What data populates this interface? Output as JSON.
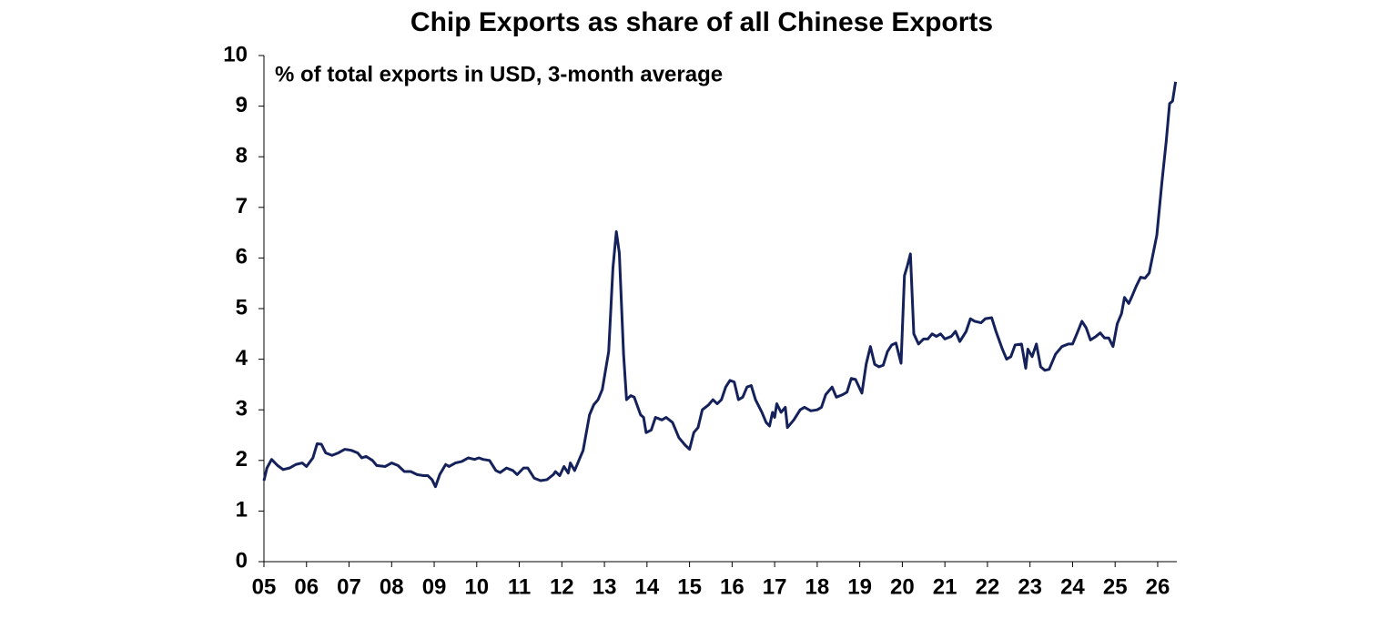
{
  "chart_data": {
    "type": "line",
    "title": "Chip Exports as share of all Chinese Exports",
    "annotation": "% of total exports in USD, 3-month average",
    "color": "#14215a",
    "xlim": [
      2005,
      2026.45
    ],
    "xticks": [
      {
        "value": 2005,
        "label": "05"
      },
      {
        "value": 2006,
        "label": "06"
      },
      {
        "value": 2007,
        "label": "07"
      },
      {
        "value": 2008,
        "label": "08"
      },
      {
        "value": 2009,
        "label": "09"
      },
      {
        "value": 2010,
        "label": "10"
      },
      {
        "value": 2011,
        "label": "11"
      },
      {
        "value": 2012,
        "label": "12"
      },
      {
        "value": 2013,
        "label": "13"
      },
      {
        "value": 2014,
        "label": "14"
      },
      {
        "value": 2015,
        "label": "15"
      },
      {
        "value": 2016,
        "label": "16"
      },
      {
        "value": 2017,
        "label": "17"
      },
      {
        "value": 2018,
        "label": "18"
      },
      {
        "value": 2019,
        "label": "19"
      },
      {
        "value": 2020,
        "label": "20"
      },
      {
        "value": 2021,
        "label": "21"
      },
      {
        "value": 2022,
        "label": "22"
      },
      {
        "value": 2023,
        "label": "23"
      },
      {
        "value": 2024,
        "label": "24"
      },
      {
        "value": 2025,
        "label": "25"
      },
      {
        "value": 2026,
        "label": "26"
      }
    ],
    "ylim": [
      0,
      10
    ],
    "yticks": [
      0,
      1,
      2,
      3,
      4,
      5,
      6,
      7,
      8,
      9,
      10
    ],
    "x": [
      2005.0,
      2005.07,
      2005.18,
      2005.32,
      2005.45,
      2005.6,
      2005.75,
      2005.9,
      2006.0,
      2006.15,
      2006.25,
      2006.35,
      2006.45,
      2006.6,
      2006.75,
      2006.9,
      2007.05,
      2007.2,
      2007.3,
      2007.4,
      2007.55,
      2007.65,
      2007.85,
      2008.0,
      2008.15,
      2008.3,
      2008.45,
      2008.6,
      2008.75,
      2008.85,
      2008.95,
      2009.03,
      2009.13,
      2009.27,
      2009.35,
      2009.5,
      2009.65,
      2009.8,
      2009.95,
      2010.05,
      2010.15,
      2010.3,
      2010.45,
      2010.55,
      2010.7,
      2010.85,
      2010.95,
      2011.1,
      2011.2,
      2011.35,
      2011.5,
      2011.65,
      2011.8,
      2011.85,
      2011.95,
      2012.05,
      2012.15,
      2012.2,
      2012.3,
      2012.5,
      2012.65,
      2012.75,
      2012.85,
      2012.95,
      2013.1,
      2013.2,
      2013.28,
      2013.35,
      2013.45,
      2013.52,
      2013.62,
      2013.7,
      2013.85,
      2013.92,
      2013.98,
      2014.1,
      2014.2,
      2014.35,
      2014.45,
      2014.6,
      2014.75,
      2014.9,
      2015.0,
      2015.1,
      2015.2,
      2015.3,
      2015.45,
      2015.55,
      2015.65,
      2015.75,
      2015.85,
      2015.95,
      2016.05,
      2016.15,
      2016.25,
      2016.35,
      2016.45,
      2016.55,
      2016.7,
      2016.8,
      2016.88,
      2016.95,
      2017.0,
      2017.05,
      2017.15,
      2017.25,
      2017.3,
      2017.45,
      2017.6,
      2017.7,
      2017.85,
      2018.0,
      2018.1,
      2018.2,
      2018.35,
      2018.45,
      2018.6,
      2018.7,
      2018.8,
      2018.9,
      2019.05,
      2019.15,
      2019.25,
      2019.35,
      2019.45,
      2019.55,
      2019.65,
      2019.75,
      2019.85,
      2019.97,
      2020.05,
      2020.12,
      2020.19,
      2020.27,
      2020.38,
      2020.5,
      2020.6,
      2020.7,
      2020.8,
      2020.9,
      2021.0,
      2021.15,
      2021.25,
      2021.35,
      2021.5,
      2021.6,
      2021.7,
      2021.85,
      2021.95,
      2022.1,
      2022.2,
      2022.35,
      2022.45,
      2022.55,
      2022.65,
      2022.8,
      2022.9,
      2022.95,
      2023.05,
      2023.15,
      2023.25,
      2023.35,
      2023.45,
      2023.6,
      2023.75,
      2023.9,
      2024.0,
      2024.1,
      2024.22,
      2024.32,
      2024.42,
      2024.55,
      2024.65,
      2024.75,
      2024.85,
      2024.95,
      2025.05,
      2025.15,
      2025.22,
      2025.32,
      2025.4,
      2025.5,
      2025.6,
      2025.7,
      2025.8,
      2025.98,
      2026.1,
      2026.2,
      2026.28,
      2026.35,
      2026.42
    ],
    "values": [
      1.6,
      1.85,
      2.02,
      1.9,
      1.82,
      1.85,
      1.92,
      1.95,
      1.88,
      2.05,
      2.33,
      2.32,
      2.15,
      2.1,
      2.15,
      2.22,
      2.2,
      2.15,
      2.05,
      2.08,
      2.0,
      1.9,
      1.88,
      1.95,
      1.9,
      1.78,
      1.78,
      1.72,
      1.7,
      1.7,
      1.62,
      1.48,
      1.72,
      1.92,
      1.88,
      1.95,
      1.98,
      2.05,
      2.02,
      2.05,
      2.02,
      2.0,
      1.8,
      1.76,
      1.85,
      1.8,
      1.72,
      1.85,
      1.85,
      1.65,
      1.6,
      1.62,
      1.72,
      1.78,
      1.7,
      1.88,
      1.75,
      1.95,
      1.8,
      2.2,
      2.9,
      3.1,
      3.2,
      3.4,
      4.15,
      5.8,
      6.52,
      6.1,
      4.1,
      3.2,
      3.28,
      3.25,
      2.9,
      2.85,
      2.55,
      2.6,
      2.85,
      2.8,
      2.85,
      2.75,
      2.45,
      2.3,
      2.22,
      2.55,
      2.65,
      3.0,
      3.1,
      3.2,
      3.12,
      3.2,
      3.45,
      3.58,
      3.55,
      3.2,
      3.25,
      3.45,
      3.48,
      3.2,
      2.95,
      2.75,
      2.68,
      2.95,
      2.85,
      3.12,
      2.95,
      3.05,
      2.65,
      2.8,
      3.0,
      3.05,
      2.98,
      3.0,
      3.05,
      3.3,
      3.45,
      3.25,
      3.3,
      3.35,
      3.62,
      3.6,
      3.33,
      3.9,
      4.25,
      3.9,
      3.85,
      3.88,
      4.15,
      4.28,
      4.32,
      3.92,
      5.65,
      5.85,
      6.08,
      4.5,
      4.3,
      4.4,
      4.4,
      4.5,
      4.45,
      4.5,
      4.4,
      4.45,
      4.55,
      4.35,
      4.55,
      4.8,
      4.75,
      4.72,
      4.8,
      4.82,
      4.55,
      4.2,
      4.0,
      4.05,
      4.28,
      4.3,
      3.82,
      4.2,
      4.05,
      4.3,
      3.85,
      3.78,
      3.8,
      4.1,
      4.25,
      4.3,
      4.3,
      4.5,
      4.75,
      4.62,
      4.38,
      4.45,
      4.52,
      4.42,
      4.42,
      4.25,
      4.7,
      4.9,
      5.22,
      5.1,
      5.25,
      5.45,
      5.62,
      5.6,
      5.7,
      6.45,
      7.5,
      8.3,
      9.05,
      9.1,
      9.48
    ]
  }
}
